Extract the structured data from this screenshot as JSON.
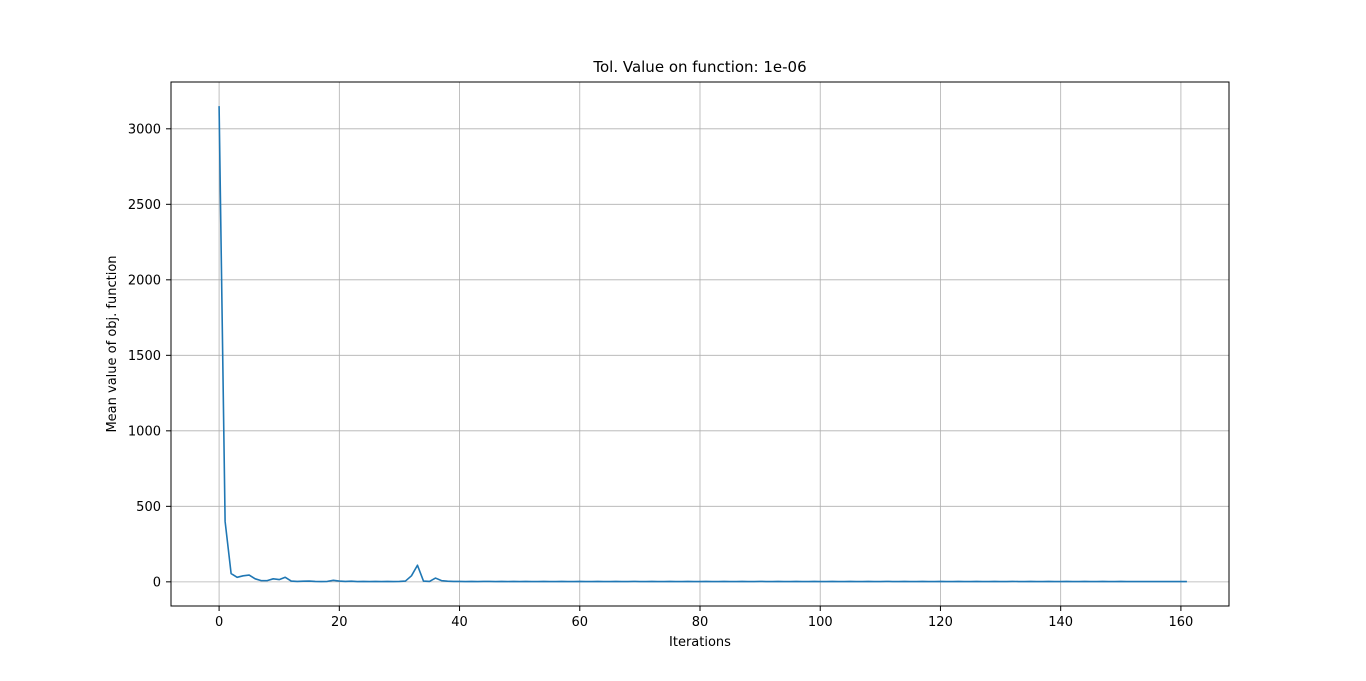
{
  "chart_data": {
    "type": "line",
    "title": "Tol. Value on function: 1e-06",
    "xlabel": "Iterations",
    "ylabel": "Mean value of obj. function",
    "xlim": [
      -8,
      168
    ],
    "ylim": [
      -160,
      3310
    ],
    "xticks": [
      0,
      20,
      40,
      60,
      80,
      100,
      120,
      140,
      160
    ],
    "yticks": [
      0,
      500,
      1000,
      1500,
      2000,
      2500,
      3000
    ],
    "grid": true,
    "line_color": "#1f77b4",
    "series": [
      {
        "x": [
          0,
          1,
          2,
          3,
          4,
          5,
          6,
          7,
          8,
          9,
          10,
          11,
          12,
          13,
          14,
          15,
          16,
          17,
          18,
          19,
          20,
          21,
          22,
          23,
          24,
          25,
          26,
          27,
          28,
          29,
          30,
          31,
          32,
          33,
          34,
          35,
          36,
          37,
          38,
          39,
          40,
          41,
          42,
          43,
          44,
          45,
          46,
          47,
          48,
          49,
          50,
          51,
          52,
          53,
          54,
          55,
          56,
          57,
          58,
          59,
          60,
          61,
          62,
          63,
          64,
          65,
          66,
          67,
          68,
          69,
          70,
          71,
          72,
          73,
          74,
          75,
          76,
          77,
          78,
          79,
          80,
          81,
          82,
          83,
          84,
          85,
          86,
          87,
          88,
          89,
          90,
          91,
          92,
          93,
          94,
          95,
          96,
          97,
          98,
          99,
          100,
          101,
          102,
          103,
          104,
          105,
          106,
          107,
          108,
          109,
          110,
          111,
          112,
          113,
          114,
          115,
          116,
          117,
          118,
          119,
          120,
          121,
          122,
          123,
          124,
          125,
          126,
          127,
          128,
          129,
          130,
          131,
          132,
          133,
          134,
          135,
          136,
          137,
          138,
          139,
          140,
          141,
          142,
          143,
          144,
          145,
          146,
          147,
          148,
          149,
          150,
          151,
          152,
          153,
          154,
          155,
          156,
          157,
          158,
          159,
          160,
          161
        ],
        "y": [
          3150,
          400,
          55,
          30,
          40,
          45,
          20,
          8,
          8,
          20,
          15,
          30,
          5,
          3,
          4,
          5,
          3,
          2,
          3,
          10,
          5,
          3,
          4,
          2,
          3,
          2,
          3,
          2,
          3,
          2,
          3,
          5,
          40,
          110,
          5,
          3,
          25,
          8,
          4,
          3,
          3,
          2,
          3,
          2,
          3,
          3,
          2,
          3,
          2,
          3,
          2,
          3,
          2,
          2,
          3,
          2,
          2,
          3,
          2,
          2,
          3,
          2,
          2,
          3,
          2,
          2,
          3,
          2,
          2,
          3,
          2,
          2,
          3,
          2,
          2,
          3,
          2,
          2,
          3,
          2,
          2,
          3,
          2,
          2,
          3,
          2,
          2,
          3,
          2,
          2,
          3,
          2,
          2,
          3,
          2,
          2,
          3,
          2,
          2,
          3,
          2,
          2,
          3,
          2,
          2,
          3,
          2,
          2,
          3,
          2,
          2,
          3,
          2,
          2,
          3,
          2,
          2,
          3,
          2,
          2,
          3,
          2,
          2,
          3,
          2,
          2,
          3,
          2,
          2,
          3,
          2,
          2,
          3,
          2,
          2,
          3,
          2,
          2,
          3,
          2,
          2,
          3,
          2,
          2,
          3,
          2,
          2,
          3,
          2,
          2,
          3,
          2,
          2,
          2,
          2,
          2,
          2,
          2,
          2,
          2,
          2,
          2
        ]
      }
    ]
  }
}
